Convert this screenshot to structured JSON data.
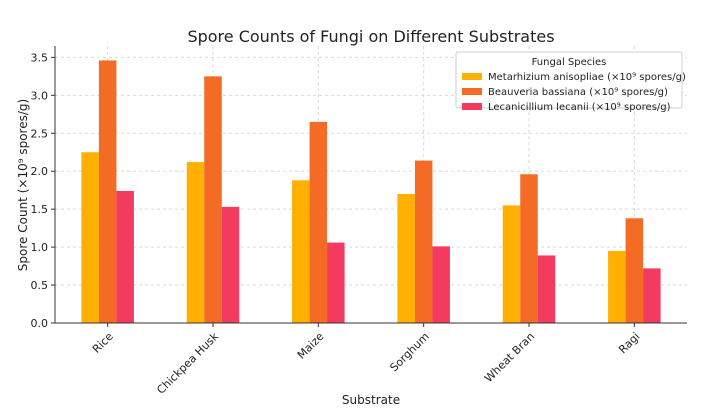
{
  "chart_data": {
    "type": "bar",
    "title": "Spore Counts of Fungi on Different Substrates",
    "xlabel": "Substrate",
    "ylabel": "Spore Count (×10⁹ spores/g)",
    "categories": [
      "Rice",
      "Chickpea Husk",
      "Maize",
      "Sorghum",
      "Wheat Bran",
      "Ragi"
    ],
    "ylim": [
      0,
      3.65
    ],
    "yticks": [
      "0.0",
      "0.5",
      "1.0",
      "1.5",
      "2.0",
      "2.5",
      "3.0",
      "3.5"
    ],
    "grid": true,
    "legend": {
      "title": "Fungal Species",
      "placement": "top-right"
    },
    "series": [
      {
        "name": "Metarhizium anisopliae (×10⁹ spores/g)",
        "color": "#FFB000",
        "values": [
          2.25,
          2.12,
          1.88,
          1.7,
          1.55,
          0.95
        ]
      },
      {
        "name": "Beauveria bassiana (×10⁹ spores/g)",
        "color": "#F46B25",
        "values": [
          3.46,
          3.25,
          2.65,
          2.14,
          1.96,
          1.38
        ]
      },
      {
        "name": "Lecanicillium lecanii (×10⁹ spores/g)",
        "color": "#F33A5F",
        "values": [
          1.74,
          1.53,
          1.06,
          1.01,
          0.89,
          0.72
        ]
      }
    ]
  }
}
